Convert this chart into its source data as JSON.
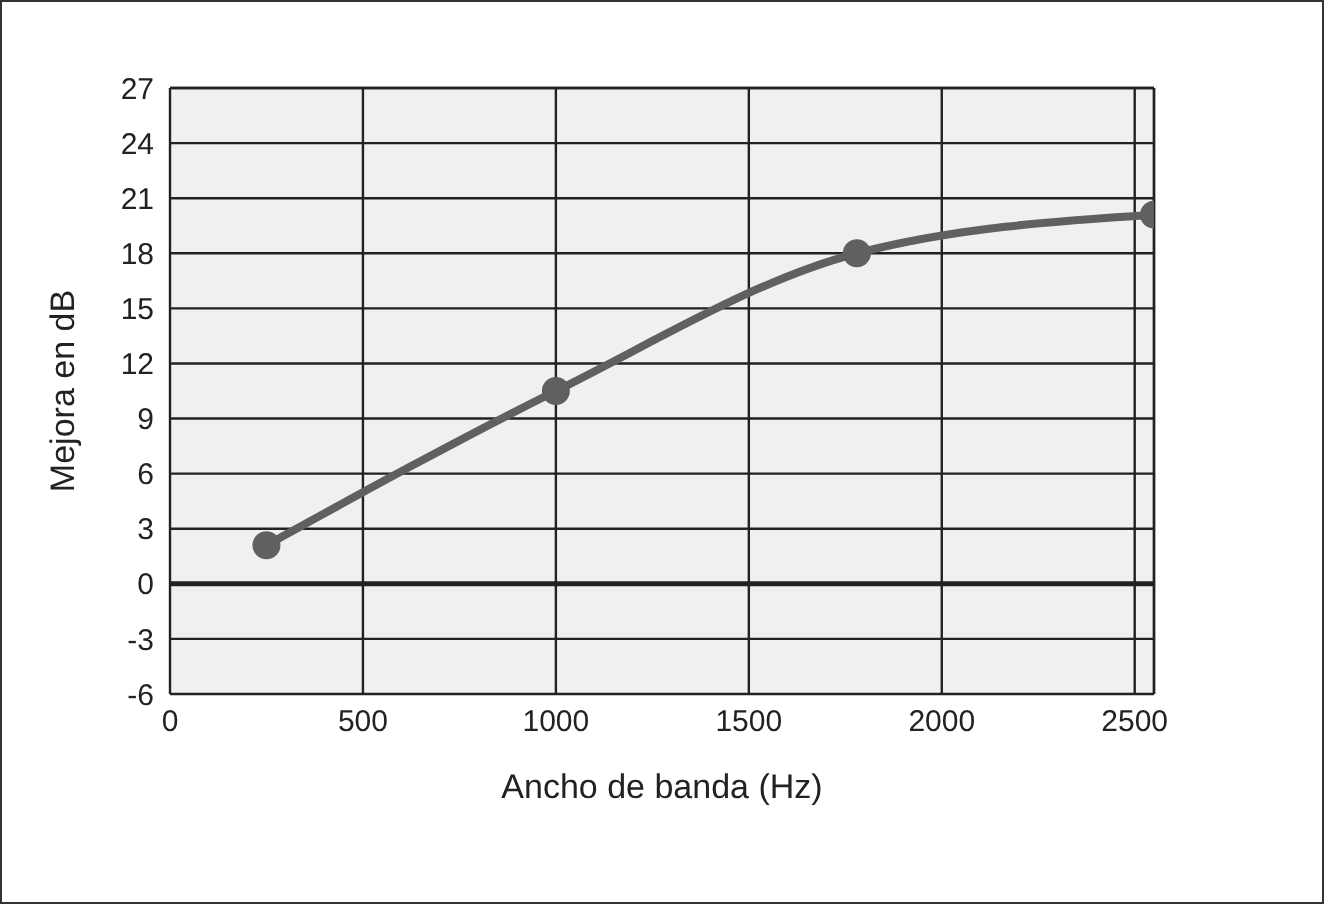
{
  "chart_data": {
    "type": "line",
    "xlabel": "Ancho de banda (Hz)",
    "ylabel": "Mejora en dB",
    "x": [
      250,
      1000,
      1780,
      2550
    ],
    "series": [
      {
        "color": "#606060",
        "values": [
          2.1,
          10.5,
          18,
          20.1
        ]
      }
    ],
    "xlim": [
      0,
      2550
    ],
    "xticks": [
      0,
      500,
      1000,
      1500,
      2000,
      2500
    ],
    "ylim": [
      -6,
      27
    ],
    "yticks": [
      -6,
      -3,
      0,
      3,
      6,
      9,
      12,
      15,
      18,
      21,
      24,
      27
    ],
    "ref_lines": [
      {
        "axis": "y",
        "value": 0,
        "color": "#222222"
      }
    ],
    "grid": true,
    "marker": "circle",
    "line_style": "solid",
    "legend": false
  }
}
